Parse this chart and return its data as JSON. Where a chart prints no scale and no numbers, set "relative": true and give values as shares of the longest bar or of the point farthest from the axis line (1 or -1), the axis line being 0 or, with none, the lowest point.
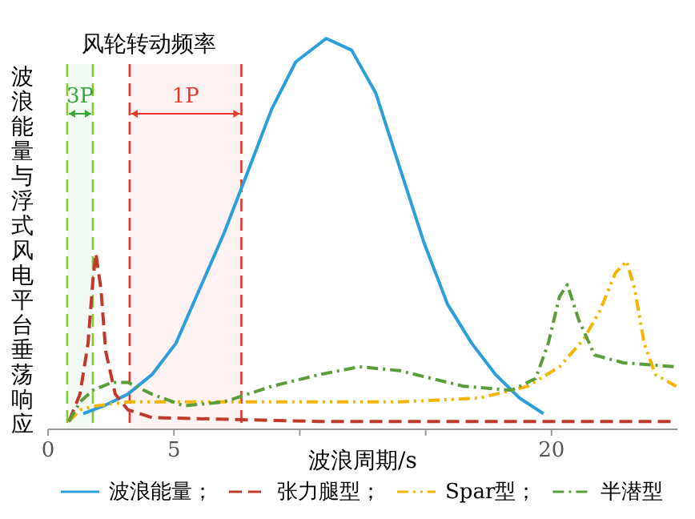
{
  "chart_data": {
    "type": "line",
    "relative": true,
    "xlabel": "波浪周期/s",
    "ylabel": "波浪能量与浮式风电平台垂荡响应",
    "annotations": [
      "风轮转动频率"
    ],
    "xlim": [
      0,
      25
    ],
    "xticks": [
      0,
      5,
      {
        "value": 10,
        "label": null
      },
      {
        "value": 15,
        "label": null
      },
      20
    ],
    "grid": false,
    "legend": "bottom",
    "ref_lines": [
      {
        "axis": "x",
        "value": 0.76,
        "color": "#8cc63f",
        "line_style": "dashed"
      },
      {
        "axis": "x",
        "value": 1.78,
        "color": "#8cc63f",
        "line_style": "dashed"
      },
      {
        "axis": "x",
        "value": 3.24,
        "color": "#e8382a",
        "line_style": "dashed"
      },
      {
        "axis": "x",
        "value": 7.68,
        "color": "#e8382a",
        "line_style": "dashed"
      }
    ],
    "bands": [
      {
        "axis": "x",
        "from": 0.76,
        "to": 1.78,
        "label": "3P",
        "color": "#3aa63a"
      },
      {
        "axis": "x",
        "from": 3.24,
        "to": 7.68,
        "label": "1P",
        "color": "#e8382a"
      }
    ],
    "series": [
      {
        "name": "波浪能量；",
        "color": "#2b9fdc",
        "line_style": "solid",
        "x": [
          1.4,
          2.22,
          3.17,
          4.13,
          5.08,
          6.03,
          6.98,
          7.94,
          8.89,
          9.84,
          11.05,
          12.06,
          13.02,
          13.97,
          14.92,
          15.87,
          16.83,
          17.78,
          18.73,
          19.68
        ],
        "values": [
          0.04,
          0.06,
          0.09,
          0.14,
          0.22,
          0.36,
          0.5,
          0.66,
          0.82,
          0.94,
          1,
          0.97,
          0.86,
          0.67,
          0.48,
          0.32,
          0.22,
          0.14,
          0.08,
          0.04
        ]
      },
      {
        "name": "张力腿型；",
        "color": "#c0392b",
        "line_style": "dashed",
        "x": [
          0.83,
          1.27,
          1.59,
          1.78,
          1.9,
          2.1,
          2.29,
          2.67,
          3.17,
          4.13,
          10.79,
          24.95
        ],
        "values": [
          0.02,
          0.09,
          0.22,
          0.38,
          0.45,
          0.36,
          0.2,
          0.09,
          0.05,
          0.03,
          0.02,
          0.02
        ]
      },
      {
        "name": "Spar型；",
        "color": "#f5b400",
        "line_style": "dashdotdot",
        "x": [
          0.83,
          1.27,
          1.9,
          3.17,
          7.62,
          13.97,
          17.14,
          19.05,
          20.32,
          21.27,
          21.9,
          22.54,
          22.98,
          23.3,
          23.68,
          24.13,
          24.95
        ],
        "values": [
          0.02,
          0.05,
          0.06,
          0.07,
          0.07,
          0.07,
          0.08,
          0.11,
          0.16,
          0.23,
          0.3,
          0.4,
          0.43,
          0.36,
          0.22,
          0.14,
          0.11
        ]
      },
      {
        "name": "半潜型",
        "color": "#5a9e3a",
        "line_style": "dashdot",
        "x": [
          0.83,
          1.27,
          1.78,
          2.54,
          3.17,
          4.13,
          5.4,
          6.98,
          8.89,
          10.79,
          12.38,
          13.97,
          16.51,
          18.41,
          19.37,
          19.87,
          20.32,
          20.63,
          21.08,
          21.71,
          22.86,
          24.95
        ],
        "values": [
          0.02,
          0.07,
          0.1,
          0.12,
          0.12,
          0.09,
          0.06,
          0.07,
          0.11,
          0.14,
          0.16,
          0.15,
          0.11,
          0.1,
          0.13,
          0.22,
          0.34,
          0.37,
          0.28,
          0.19,
          0.17,
          0.16
        ]
      }
    ]
  }
}
